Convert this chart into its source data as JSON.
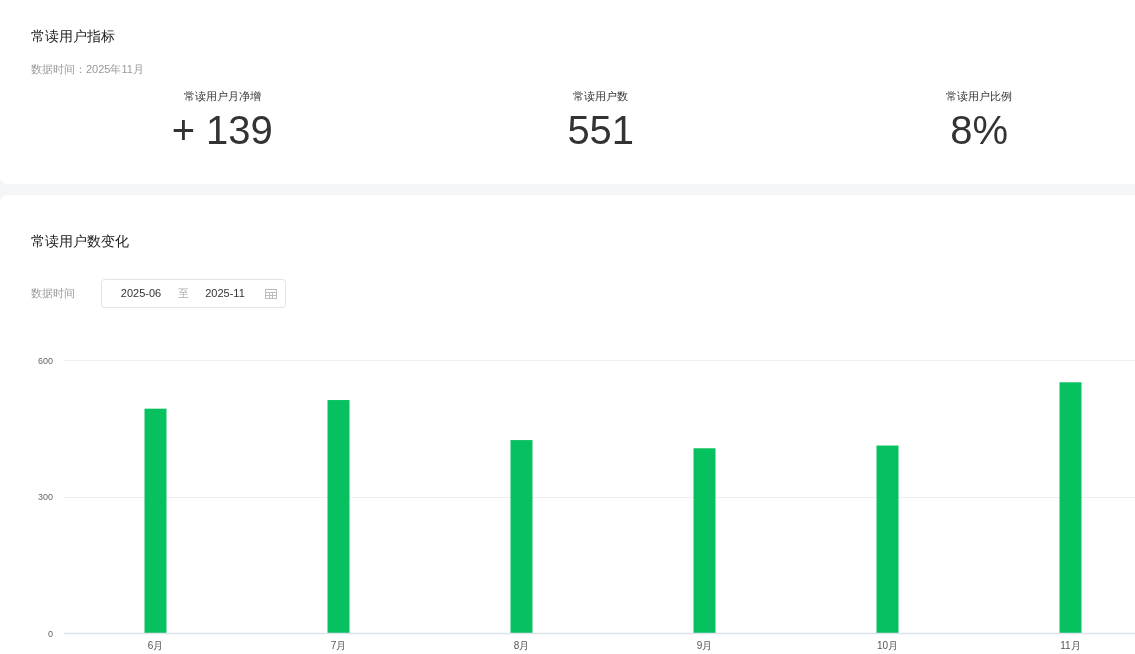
{
  "chart_data": [
    {
      "type": "other",
      "title": "常读用户指标",
      "subtitle": "数据时间：2025年11月",
      "annotations": [
        "常读用户月净增",
        "+ 139",
        "常读用户数",
        "551",
        "常读用户比例",
        "8%"
      ]
    },
    {
      "type": "bar",
      "title": "常读用户数变化",
      "annotations": [
        "数据时间",
        "2025-06",
        "至",
        "2025-11"
      ],
      "categories": [
        "6月",
        "7月",
        "8月",
        "9月",
        "10月",
        "11月"
      ],
      "values": [
        493,
        512,
        424,
        406,
        412,
        551
      ],
      "color": "#07c160",
      "ylim": [
        0,
        600
      ],
      "yticks": [
        0,
        300,
        600
      ],
      "grid": "y"
    }
  ]
}
